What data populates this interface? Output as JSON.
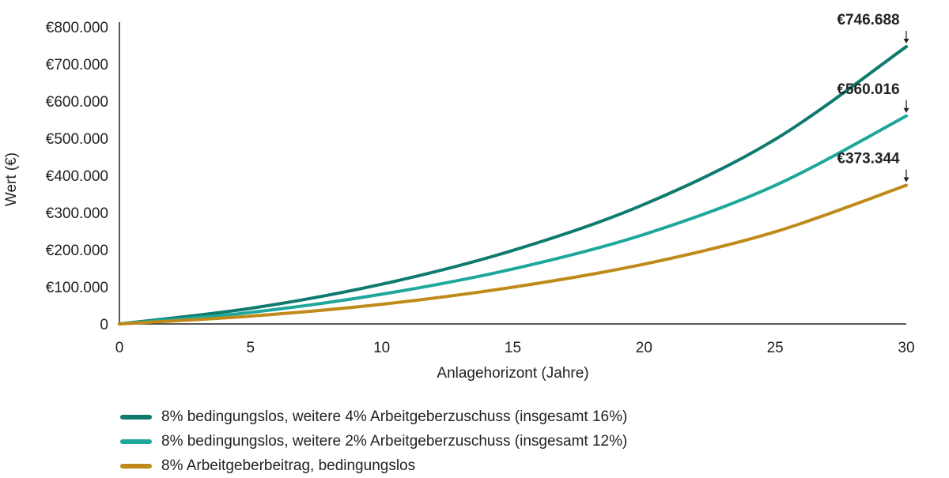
{
  "chart_data": {
    "type": "line",
    "xlabel": "Anlagehorizont (Jahre)",
    "ylabel": "Wert (€)",
    "xlim": [
      0,
      30
    ],
    "ylim": [
      0,
      800000
    ],
    "x_ticks": [
      0,
      5,
      10,
      15,
      20,
      25,
      30
    ],
    "x_tick_labels": [
      "0",
      "5",
      "10",
      "15",
      "20",
      "25",
      "30"
    ],
    "y_ticks": [
      0,
      100000,
      200000,
      300000,
      400000,
      500000,
      600000,
      700000,
      800000
    ],
    "y_tick_labels": [
      "0",
      "€100.000",
      "€200.000",
      "€300.000",
      "€400.000",
      "€500.000",
      "€600.000",
      "€700.000",
      "€800.000"
    ],
    "grid": false,
    "legend_position": "bottom",
    "x": [
      0,
      5,
      10,
      15,
      20,
      25,
      30
    ],
    "series": [
      {
        "name": "8% bedingungslos, weitere 4% Arbeitgeberzuschuss (insgesamt 16%)",
        "color": "#0f7a6e",
        "values": [
          0,
          42000,
          107000,
          198000,
          322000,
          497000,
          746688
        ],
        "end_label": "€746.688"
      },
      {
        "name": "8% bedingungslos, weitere 2% Arbeitgeberzuschuss (insgesamt 12%)",
        "color": "#1ea79b",
        "values": [
          0,
          31000,
          80000,
          148000,
          241000,
          373000,
          560016
        ],
        "end_label": "€560.016"
      },
      {
        "name": "8% Arbeitgeberbeitrag, bedingungslos",
        "color": "#c08a1a",
        "values": [
          0,
          21000,
          53000,
          99000,
          161000,
          248000,
          373344
        ],
        "end_label": "€373.344"
      }
    ]
  }
}
